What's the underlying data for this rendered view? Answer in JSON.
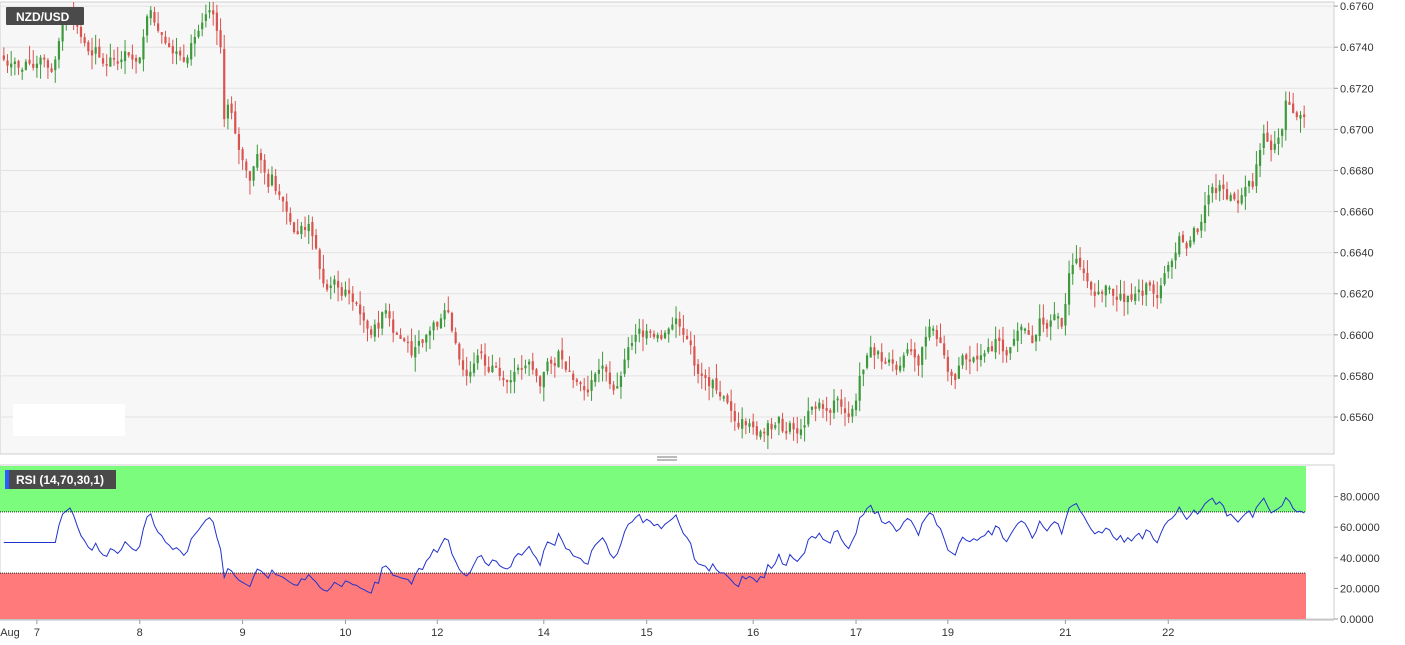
{
  "chart_data": [
    {
      "type": "candlestick",
      "symbol": "NZD/USD",
      "ylim": [
        0.6542,
        0.6762
      ],
      "y_ticks": [
        "0.6760",
        "0.6740",
        "0.6720",
        "0.6700",
        "0.6680",
        "0.6660",
        "0.6640",
        "0.6620",
        "0.6600",
        "0.6580",
        "0.6560"
      ],
      "grid": true,
      "colors": {
        "up": "#3c9a3c",
        "down": "#d9534f",
        "background": "#f7f7f7",
        "grid": "#e3e3e3"
      },
      "x_ticks": [
        {
          "label": "Aug",
          "candle": 1
        },
        {
          "label": "7",
          "candle": 9
        },
        {
          "label": "8",
          "candle": 37
        },
        {
          "label": "9",
          "candle": 65
        },
        {
          "label": "10",
          "candle": 93
        },
        {
          "label": "12",
          "candle": 118
        },
        {
          "label": "14",
          "candle": 147
        },
        {
          "label": "15",
          "candle": 175
        },
        {
          "label": "16",
          "candle": 204
        },
        {
          "label": "17",
          "candle": 232
        },
        {
          "label": "19",
          "candle": 257
        },
        {
          "label": "21",
          "candle": 289
        },
        {
          "label": "22",
          "candle": 317
        }
      ],
      "close": [
        0.6734,
        0.6731,
        0.6732,
        0.6733,
        0.673,
        0.6729,
        0.6733,
        0.6732,
        0.673,
        0.6732,
        0.6735,
        0.6734,
        0.673,
        0.6728,
        0.6734,
        0.6743,
        0.6752,
        0.6755,
        0.6758,
        0.6755,
        0.675,
        0.6745,
        0.6742,
        0.6738,
        0.6736,
        0.674,
        0.6735,
        0.6732,
        0.6731,
        0.6735,
        0.6734,
        0.6732,
        0.6734,
        0.6738,
        0.6736,
        0.6734,
        0.6733,
        0.6735,
        0.6745,
        0.6755,
        0.6758,
        0.6752,
        0.6748,
        0.6746,
        0.6742,
        0.674,
        0.6737,
        0.6738,
        0.6736,
        0.6733,
        0.6735,
        0.6742,
        0.6745,
        0.6748,
        0.6752,
        0.6756,
        0.6758,
        0.6756,
        0.6748,
        0.674,
        0.6705,
        0.6712,
        0.6708,
        0.6698,
        0.669,
        0.6685,
        0.668,
        0.6675,
        0.6682,
        0.6688,
        0.6685,
        0.6679,
        0.6672,
        0.6678,
        0.667,
        0.6668,
        0.6665,
        0.666,
        0.6655,
        0.665,
        0.6649,
        0.6653,
        0.6651,
        0.6654,
        0.6648,
        0.6642,
        0.6632,
        0.6625,
        0.6622,
        0.6624,
        0.6627,
        0.6623,
        0.6619,
        0.6622,
        0.662,
        0.6616,
        0.6615,
        0.661,
        0.6607,
        0.6603,
        0.66,
        0.6605,
        0.6603,
        0.6611,
        0.6612,
        0.6608,
        0.6601,
        0.66,
        0.6598,
        0.6597,
        0.6596,
        0.659,
        0.6594,
        0.6597,
        0.6596,
        0.66,
        0.6602,
        0.6606,
        0.6604,
        0.6608,
        0.6612,
        0.6611,
        0.6602,
        0.6596,
        0.6588,
        0.6583,
        0.658,
        0.6582,
        0.6586,
        0.659,
        0.6591,
        0.6585,
        0.6582,
        0.6585,
        0.6584,
        0.658,
        0.6578,
        0.6577,
        0.6578,
        0.6582,
        0.6584,
        0.6583,
        0.6585,
        0.6587,
        0.6583,
        0.658,
        0.6575,
        0.6582,
        0.6587,
        0.6586,
        0.6585,
        0.6592,
        0.6588,
        0.6583,
        0.6582,
        0.6578,
        0.6577,
        0.6576,
        0.6573,
        0.6572,
        0.6578,
        0.6581,
        0.6583,
        0.6585,
        0.6582,
        0.6576,
        0.6573,
        0.6575,
        0.658,
        0.6588,
        0.6594,
        0.6596,
        0.66,
        0.6603,
        0.6599,
        0.6602,
        0.6601,
        0.6599,
        0.66,
        0.6598,
        0.6601,
        0.6603,
        0.6605,
        0.6608,
        0.6604,
        0.66,
        0.6598,
        0.6595,
        0.6585,
        0.6581,
        0.658,
        0.6579,
        0.6575,
        0.6578,
        0.6573,
        0.657,
        0.657,
        0.6567,
        0.6563,
        0.6558,
        0.6555,
        0.6559,
        0.6556,
        0.6557,
        0.6555,
        0.6551,
        0.6553,
        0.6552,
        0.6557,
        0.6554,
        0.6556,
        0.656,
        0.6553,
        0.6552,
        0.6557,
        0.6554,
        0.6552,
        0.6554,
        0.6556,
        0.6563,
        0.6565,
        0.6564,
        0.6567,
        0.6564,
        0.6563,
        0.6562,
        0.6568,
        0.6569,
        0.6565,
        0.6562,
        0.656,
        0.6564,
        0.6568,
        0.658,
        0.6583,
        0.659,
        0.6594,
        0.659,
        0.6592,
        0.6587,
        0.6586,
        0.6588,
        0.6586,
        0.6583,
        0.6585,
        0.659,
        0.6593,
        0.6592,
        0.6589,
        0.6585,
        0.6594,
        0.6599,
        0.6604,
        0.6603,
        0.6598,
        0.6596,
        0.659,
        0.6582,
        0.658,
        0.6578,
        0.6585,
        0.659,
        0.6588,
        0.6587,
        0.6589,
        0.6588,
        0.659,
        0.6591,
        0.6594,
        0.6592,
        0.6598,
        0.6597,
        0.6592,
        0.659,
        0.6594,
        0.6598,
        0.6602,
        0.6604,
        0.6603,
        0.66,
        0.6596,
        0.66,
        0.6608,
        0.6605,
        0.6603,
        0.6607,
        0.661,
        0.6609,
        0.6604,
        0.6615,
        0.663,
        0.6634,
        0.6637,
        0.6633,
        0.663,
        0.6626,
        0.6622,
        0.6619,
        0.6621,
        0.662,
        0.6624,
        0.6623,
        0.6619,
        0.6617,
        0.662,
        0.6616,
        0.6619,
        0.6617,
        0.662,
        0.6622,
        0.6619,
        0.6625,
        0.6624,
        0.662,
        0.6618,
        0.6624,
        0.663,
        0.6634,
        0.6636,
        0.664,
        0.6648,
        0.6645,
        0.6642,
        0.6646,
        0.6652,
        0.665,
        0.6655,
        0.6663,
        0.6668,
        0.6672,
        0.6669,
        0.6673,
        0.6671,
        0.6666,
        0.6668,
        0.6666,
        0.6664,
        0.6668,
        0.6672,
        0.6675,
        0.6672,
        0.6683,
        0.669,
        0.6698,
        0.6694,
        0.669,
        0.6693,
        0.6696,
        0.67,
        0.6714,
        0.6712,
        0.6708,
        0.6706,
        0.6707,
        0.6706
      ],
      "rsi": {
        "label": "RSI (14,70,30,1)",
        "period": 14,
        "overbought": 70,
        "oversold": 30,
        "ylim": [
          0,
          100
        ],
        "y_ticks": [
          "80.0000",
          "60.0000",
          "40.0000",
          "20.0000",
          "0.0000"
        ],
        "line_color": "#2233cc",
        "overbought_color": "#7cfc7c",
        "oversold_color": "#ff7b7b"
      }
    }
  ]
}
